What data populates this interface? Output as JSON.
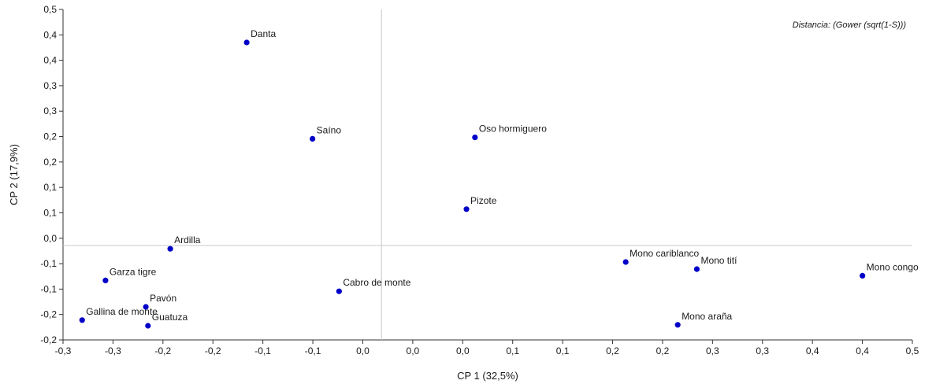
{
  "chart_data": {
    "type": "scatter",
    "title": "",
    "annotation": "Distancia: (Gower (sqrt(1-S)))",
    "xlabel": "CP 1 (32,5%)",
    "ylabel": "CP 2 (17,9%)",
    "xlim": [
      -0.3,
      0.5
    ],
    "ylim": [
      -0.2,
      0.5
    ],
    "x_tick_labels": [
      "-0,3",
      "-0,3",
      "-0,2",
      "-0,2",
      "-0,1",
      "-0,1",
      "0,0",
      "0,0",
      "0,0",
      "0,1",
      "0,1",
      "0,2",
      "0,2",
      "0,3",
      "0,3",
      "0,4",
      "0,4",
      "0,5"
    ],
    "y_tick_labels": [
      "-0,2",
      "-0,2",
      "-0,1",
      "-0,1",
      "0,0",
      "0,1",
      "0,1",
      "0,2",
      "0,2",
      "0,3",
      "0,3",
      "0,4",
      "0,4",
      "0,5"
    ],
    "grid": false,
    "reference_lines": {
      "x": 0.0,
      "y": 0.0
    },
    "marker_color": "#0000c8",
    "points": [
      {
        "label": "Danta",
        "x": -0.127,
        "y": 0.43
      },
      {
        "label": "Saíno",
        "x": -0.065,
        "y": 0.226
      },
      {
        "label": "Oso hormiguero",
        "x": 0.088,
        "y": 0.229
      },
      {
        "label": "Pizote",
        "x": 0.08,
        "y": 0.077
      },
      {
        "label": "Ardilla",
        "x": -0.199,
        "y": -0.007
      },
      {
        "label": "Garza tigre",
        "x": -0.26,
        "y": -0.074
      },
      {
        "label": "Cabro de monte",
        "x": -0.04,
        "y": -0.097
      },
      {
        "label": "Pavón",
        "x": -0.222,
        "y": -0.13
      },
      {
        "label": "Gallina de monte",
        "x": -0.282,
        "y": -0.158
      },
      {
        "label": "Guatuza",
        "x": -0.22,
        "y": -0.17
      },
      {
        "label": "Mono cariblanco",
        "x": 0.23,
        "y": -0.035
      },
      {
        "label": "Mono tití",
        "x": 0.297,
        "y": -0.05
      },
      {
        "label": "Mono congo",
        "x": 0.453,
        "y": -0.064
      },
      {
        "label": "Mono araña",
        "x": 0.279,
        "y": -0.168
      }
    ]
  }
}
